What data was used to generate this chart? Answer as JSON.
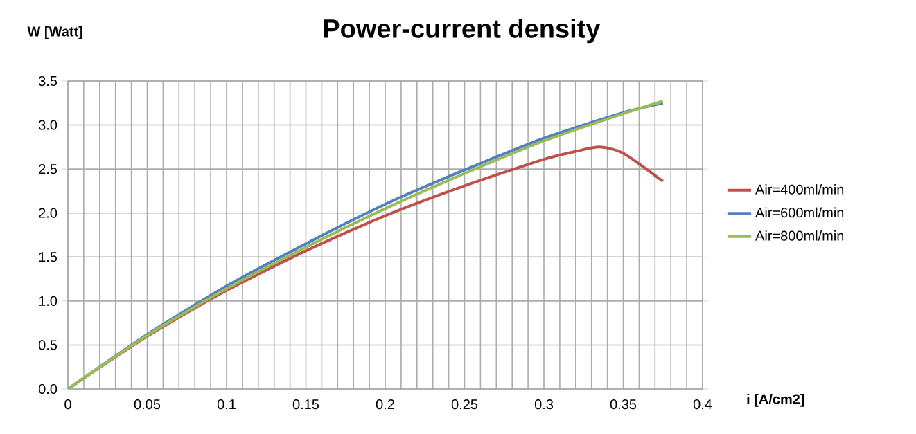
{
  "chart_data": {
    "type": "line",
    "title": "Power-current density",
    "xlabel": "i [A/cm2]",
    "ylabel": "W [Watt]",
    "xlim": [
      0,
      0.4
    ],
    "xticks": [
      0,
      0.05,
      0.1,
      0.15,
      0.2,
      0.25,
      0.3,
      0.35,
      0.4
    ],
    "ylim": [
      0,
      3.5
    ],
    "yticks": [
      {
        "value": 0,
        "label": "0.0"
      },
      0.5,
      {
        "value": 1,
        "label": "1.0"
      },
      1.5,
      {
        "value": 2,
        "label": "2.0"
      },
      2.5,
      {
        "value": 3,
        "label": "3.0"
      },
      3.5
    ],
    "grid": true,
    "legend": "right",
    "marker": "none",
    "line_style": "solid",
    "x": [
      0,
      0.05,
      0.1,
      0.15,
      0.2,
      0.25,
      0.3,
      0.32,
      0.335,
      0.35,
      0.375
    ],
    "series": [
      {
        "name": "Air=400ml/min",
        "color": "#c0504d",
        "values": [
          0,
          0.6,
          1.12,
          1.57,
          1.97,
          2.31,
          2.61,
          2.7,
          2.75,
          2.68,
          2.36
        ]
      },
      {
        "name": "Air=600ml/min",
        "color": "#4f81bd",
        "x": [
          0,
          0.05,
          0.1,
          0.15,
          0.2,
          0.25,
          0.3,
          0.35,
          0.375
        ],
        "values": [
          0,
          0.62,
          1.17,
          1.65,
          2.1,
          2.49,
          2.85,
          3.14,
          3.25
        ]
      },
      {
        "name": "Air=800ml/min",
        "color": "#9bbb59",
        "x": [
          0,
          0.05,
          0.1,
          0.15,
          0.2,
          0.25,
          0.3,
          0.35,
          0.375
        ],
        "values": [
          0,
          0.61,
          1.14,
          1.61,
          2.05,
          2.45,
          2.82,
          3.13,
          3.27
        ]
      }
    ]
  }
}
